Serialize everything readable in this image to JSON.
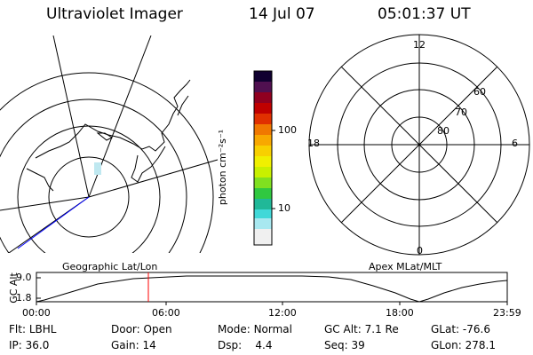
{
  "header": {
    "title": "Ultraviolet Imager",
    "date": "14 Jul 07",
    "time": "05:01:37 UT"
  },
  "colorbar": {
    "unit_label": "photon cm⁻²s⁻¹",
    "tick_100": "100",
    "tick_10": "10"
  },
  "polar_plot": {
    "mlt_labels": {
      "top": "12",
      "left": "18",
      "right": "6",
      "bottom": "0"
    },
    "lat_labels": [
      "60",
      "70",
      "80"
    ]
  },
  "timeline": {
    "left_title": "Geographic Lat/Lon",
    "right_title": "Apex MLat/MLT",
    "y_label": "GC Alt",
    "y_ticks": [
      "9.0",
      "1.8"
    ],
    "x_ticks": [
      "00:00",
      "06:00",
      "12:00",
      "18:00",
      "23:59"
    ],
    "marker_time": "05:01:37"
  },
  "info": {
    "row1": [
      {
        "label": "Flt:",
        "value": "LBHL"
      },
      {
        "label": "Door:",
        "value": "Open"
      },
      {
        "label": "Mode:",
        "value": "Normal"
      },
      {
        "label": "GC Alt:",
        "value": "7.1 Re"
      },
      {
        "label": "GLat:",
        "value": "-76.6"
      }
    ],
    "row2": [
      {
        "label": "IP:",
        "value": "36.0"
      },
      {
        "label": "Gain:",
        "value": "14"
      },
      {
        "label": "Dsp:",
        "value": "4.4"
      },
      {
        "label": "Seq:",
        "value": "39"
      },
      {
        "label": "GLon:",
        "value": "278.1"
      }
    ]
  },
  "colors": {
    "marker": "#ff0000",
    "blue_line": "#0000ff",
    "aurora": "#bfe8f0"
  }
}
